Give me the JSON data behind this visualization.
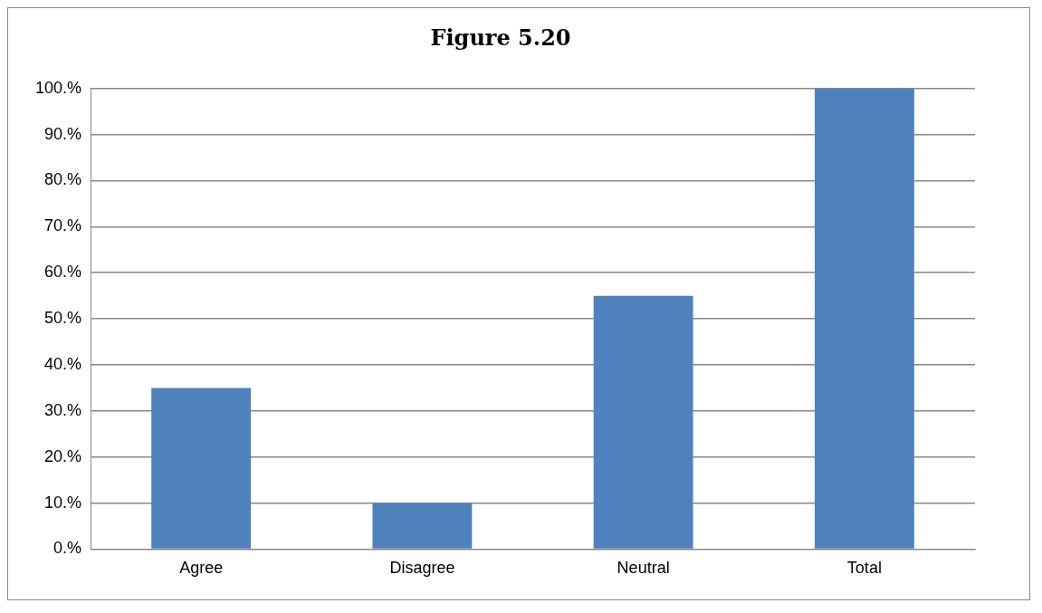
{
  "chart_data": {
    "type": "bar",
    "title": "Figure 5.20",
    "categories": [
      "Agree",
      "Disagree",
      "Neutral",
      "Total"
    ],
    "values": [
      35,
      10,
      55,
      100
    ],
    "color": "#4f81bd",
    "ylim": [
      0,
      100
    ],
    "yticks": [
      {
        "value": 0,
        "label": "0.%"
      },
      {
        "value": 10,
        "label": "10.%"
      },
      {
        "value": 20,
        "label": "20.%"
      },
      {
        "value": 30,
        "label": "30.%"
      },
      {
        "value": 40,
        "label": "40.%"
      },
      {
        "value": 50,
        "label": "50.%"
      },
      {
        "value": 60,
        "label": "60.%"
      },
      {
        "value": 70,
        "label": "70.%"
      },
      {
        "value": 80,
        "label": "80.%"
      },
      {
        "value": 90,
        "label": "90.%"
      },
      {
        "value": 100,
        "label": "100.%"
      }
    ],
    "grid": "y",
    "legend": false
  }
}
